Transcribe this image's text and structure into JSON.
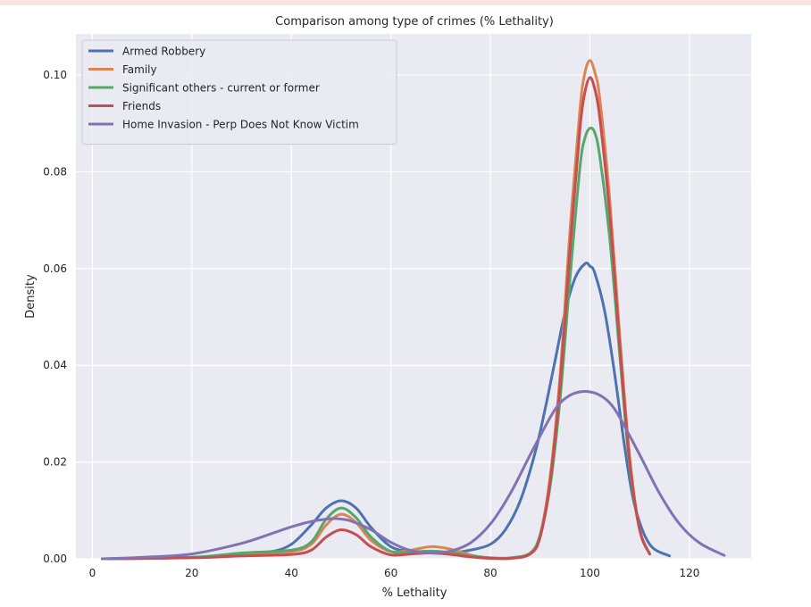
{
  "chart_data": {
    "type": "line",
    "title": "Comparison among type of crimes (% Lethality)",
    "xlabel": "% Lethality",
    "ylabel": "Density",
    "xlim": [
      -3.3,
      132.4
    ],
    "ylim": [
      0,
      0.1085
    ],
    "xticks": [
      0,
      20,
      40,
      60,
      80,
      100,
      120
    ],
    "yticks": [
      0.0,
      0.02,
      0.04,
      0.06,
      0.08,
      0.1
    ],
    "ytick_labels": [
      "0.00",
      "0.02",
      "0.04",
      "0.06",
      "0.08",
      "0.10"
    ],
    "grid": true,
    "background": "#eaeaf2",
    "legend_position": "top-left",
    "series": [
      {
        "name": "Armed Robbery",
        "color": "#4c72b0",
        "x": [
          2,
          20,
          30,
          36,
          40,
          44,
          47,
          50,
          53,
          56,
          60,
          64,
          68,
          72,
          76,
          80,
          83,
          86,
          89,
          91,
          93,
          95,
          97,
          99,
          100,
          101,
          103,
          105,
          107,
          109,
          112,
          116
        ],
        "y": [
          0.0,
          0.0003,
          0.001,
          0.0015,
          0.003,
          0.007,
          0.0105,
          0.012,
          0.0105,
          0.0065,
          0.0025,
          0.0015,
          0.0012,
          0.0012,
          0.0018,
          0.003,
          0.006,
          0.012,
          0.022,
          0.031,
          0.041,
          0.051,
          0.058,
          0.061,
          0.0605,
          0.059,
          0.051,
          0.038,
          0.023,
          0.011,
          0.003,
          0.0006
        ]
      },
      {
        "name": "Family",
        "color": "#dd8452",
        "x": [
          2,
          20,
          30,
          40,
          44,
          47,
          50,
          53,
          56,
          60,
          64,
          68,
          72,
          76,
          80,
          84,
          88,
          90,
          92,
          94,
          96,
          98,
          99,
          100,
          101,
          102,
          104,
          106,
          108,
          110,
          112
        ],
        "y": [
          0.0,
          0.0003,
          0.001,
          0.0015,
          0.003,
          0.007,
          0.0092,
          0.0075,
          0.0038,
          0.0015,
          0.0018,
          0.0025,
          0.002,
          0.0008,
          0.0002,
          0.0001,
          0.001,
          0.005,
          0.017,
          0.038,
          0.068,
          0.093,
          0.1005,
          0.103,
          0.1005,
          0.095,
          0.074,
          0.046,
          0.021,
          0.006,
          0.001
        ]
      },
      {
        "name": "Significant others - current or former",
        "color": "#55a868",
        "x": [
          2,
          20,
          30,
          40,
          44,
          47,
          50,
          53,
          56,
          60,
          64,
          68,
          72,
          76,
          80,
          84,
          88,
          90,
          92,
          94,
          96,
          98,
          99,
          100,
          101,
          102,
          104,
          106,
          108,
          110,
          112
        ],
        "y": [
          0.0,
          0.0003,
          0.0012,
          0.0018,
          0.0035,
          0.0082,
          0.0105,
          0.0085,
          0.0045,
          0.0015,
          0.0014,
          0.0016,
          0.0013,
          0.0006,
          0.0002,
          0.0002,
          0.0012,
          0.005,
          0.015,
          0.033,
          0.058,
          0.081,
          0.087,
          0.089,
          0.088,
          0.083,
          0.066,
          0.042,
          0.019,
          0.006,
          0.001
        ]
      },
      {
        "name": "Friends",
        "color": "#c44e52",
        "x": [
          2,
          20,
          30,
          40,
          44,
          47,
          50,
          53,
          56,
          60,
          64,
          68,
          72,
          76,
          80,
          84,
          88,
          90,
          92,
          94,
          96,
          98,
          99,
          100,
          101,
          102,
          104,
          106,
          108,
          110,
          112
        ],
        "y": [
          0.0,
          0.0002,
          0.0006,
          0.0009,
          0.0018,
          0.0045,
          0.006,
          0.005,
          0.0025,
          0.0008,
          0.001,
          0.0012,
          0.0009,
          0.0004,
          0.0001,
          0.0001,
          0.001,
          0.0045,
          0.016,
          0.036,
          0.064,
          0.089,
          0.0965,
          0.0995,
          0.097,
          0.091,
          0.071,
          0.044,
          0.02,
          0.006,
          0.001
        ]
      },
      {
        "name": "Home Invasion - Perp Does Not Know Victim",
        "color": "#8172b3",
        "x": [
          2,
          10,
          20,
          30,
          36,
          40,
          44,
          48,
          50,
          52,
          56,
          60,
          64,
          68,
          72,
          76,
          80,
          84,
          88,
          92,
          94,
          96,
          98,
          100,
          102,
          104,
          106,
          110,
          114,
          118,
          122,
          127
        ],
        "y": [
          0.0,
          0.0003,
          0.001,
          0.0032,
          0.0052,
          0.0066,
          0.0077,
          0.0083,
          0.0082,
          0.0078,
          0.006,
          0.0034,
          0.0017,
          0.0012,
          0.0016,
          0.0033,
          0.0072,
          0.0135,
          0.0215,
          0.0292,
          0.0322,
          0.0338,
          0.0345,
          0.0345,
          0.0338,
          0.0322,
          0.0292,
          0.0215,
          0.0135,
          0.0072,
          0.0033,
          0.0007
        ]
      }
    ]
  }
}
